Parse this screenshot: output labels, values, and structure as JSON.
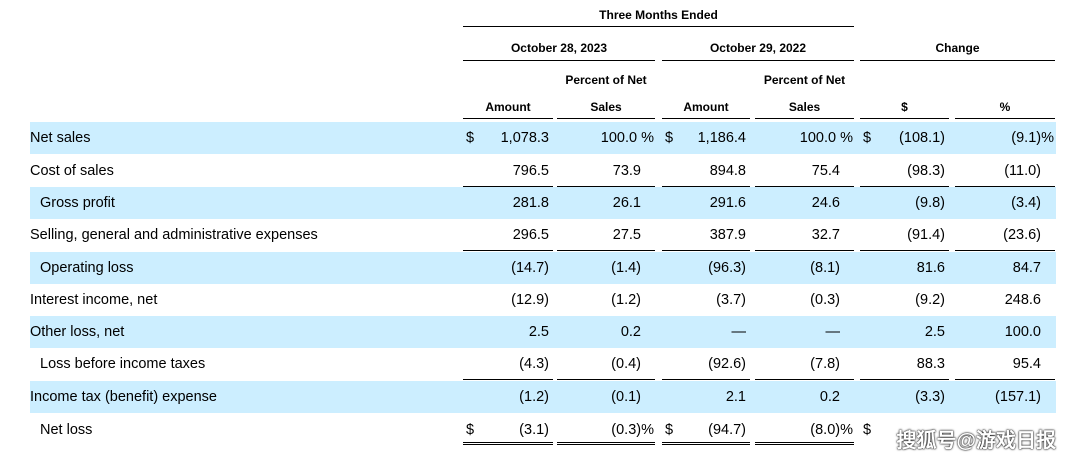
{
  "header": {
    "period": "Three Months Ended",
    "col_2023": "October 28, 2023",
    "col_2022": "October 29, 2022",
    "change": "Change",
    "percent_of_net": "Percent of Net",
    "amount": "Amount",
    "sales": "Sales",
    "dollar_sign": "$",
    "percent_sign": "%"
  },
  "rows": [
    {
      "label": "Net sales",
      "indent": false,
      "shaded": true,
      "dollar": true,
      "cells": [
        "1,078.3",
        "100.0 %",
        "1,186.4",
        "100.0 %",
        "(108.1)",
        "(9.1)%"
      ]
    },
    {
      "label": "Cost of sales",
      "indent": false,
      "shaded": false,
      "dollar": false,
      "cells": [
        "796.5",
        "73.9",
        "894.8",
        "75.4",
        "(98.3)",
        "(11.0)"
      ]
    },
    {
      "label": "Gross profit",
      "indent": true,
      "shaded": true,
      "dollar": false,
      "cells": [
        "281.8",
        "26.1",
        "291.6",
        "24.6",
        "(9.8)",
        "(3.4)"
      ]
    },
    {
      "label": "Selling, general and administrative expenses",
      "indent": false,
      "shaded": false,
      "dollar": false,
      "cells": [
        "296.5",
        "27.5",
        "387.9",
        "32.7",
        "(91.4)",
        "(23.6)"
      ]
    },
    {
      "label": "Operating loss",
      "indent": true,
      "shaded": true,
      "dollar": false,
      "cells": [
        "(14.7)",
        "(1.4)",
        "(96.3)",
        "(8.1)",
        "81.6",
        "84.7"
      ]
    },
    {
      "label": "Interest income, net",
      "indent": false,
      "shaded": false,
      "dollar": false,
      "cells": [
        "(12.9)",
        "(1.2)",
        "(3.7)",
        "(0.3)",
        "(9.2)",
        "248.6"
      ]
    },
    {
      "label": "Other loss, net",
      "indent": false,
      "shaded": true,
      "dollar": false,
      "cells": [
        "2.5",
        "0.2",
        "—",
        "—",
        "2.5",
        "100.0"
      ]
    },
    {
      "label": "Loss before income taxes",
      "indent": true,
      "shaded": false,
      "dollar": false,
      "cells": [
        "(4.3)",
        "(0.4)",
        "(92.6)",
        "(7.8)",
        "88.3",
        "95.4"
      ]
    },
    {
      "label": "Income tax (benefit) expense",
      "indent": false,
      "shaded": true,
      "dollar": false,
      "cells": [
        "(1.2)",
        "(0.1)",
        "2.1",
        "0.2",
        "(3.3)",
        "(157.1)"
      ]
    },
    {
      "label": "Net loss",
      "indent": true,
      "shaded": false,
      "dollar": true,
      "cells": [
        "(3.1)",
        "(0.3)%",
        "(94.7)",
        "(8.0)%",
        "",
        ""
      ]
    }
  ],
  "watermark": "搜狐号@游戏日报"
}
